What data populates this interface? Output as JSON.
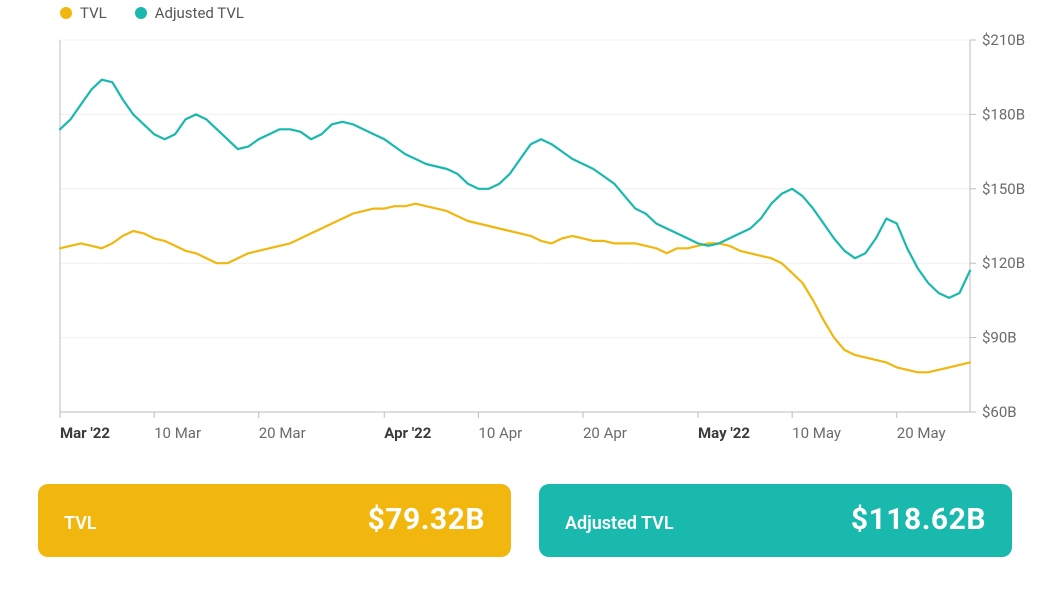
{
  "legend": {
    "items": [
      {
        "label": "TVL",
        "color": "#f1b70f"
      },
      {
        "label": "Adjusted TVL",
        "color": "#19b9ae"
      }
    ]
  },
  "chart": {
    "type": "line",
    "background_color": "#ffffff",
    "grid_color": "#f0f0f0",
    "axis_color": "#bdbdbd",
    "line_width": 2.2,
    "ylim": [
      60,
      210
    ],
    "ytick_step": 30,
    "y_tick_labels": [
      "$210B",
      "$180B",
      "$150B",
      "$120B",
      "$90B",
      "$60B"
    ],
    "y_tick_vals": [
      210,
      180,
      150,
      120,
      90,
      60
    ],
    "x_tick_labels": [
      {
        "label": "Mar '22",
        "bold": true,
        "idx": 0
      },
      {
        "label": "10 Mar",
        "bold": false,
        "idx": 9
      },
      {
        "label": "20 Mar",
        "bold": false,
        "idx": 19
      },
      {
        "label": "Apr '22",
        "bold": true,
        "idx": 31
      },
      {
        "label": "10 Apr",
        "bold": false,
        "idx": 40
      },
      {
        "label": "20 Apr",
        "bold": false,
        "idx": 50
      },
      {
        "label": "May '22",
        "bold": true,
        "idx": 61
      },
      {
        "label": "10 May",
        "bold": false,
        "idx": 70
      },
      {
        "label": "20 May",
        "bold": false,
        "idx": 80
      }
    ],
    "n_points": 88,
    "series": [
      {
        "name": "TVL",
        "color": "#f1b70f",
        "values": [
          126,
          127,
          128,
          127,
          126,
          128,
          131,
          133,
          132,
          130,
          129,
          127,
          125,
          124,
          122,
          120,
          120,
          122,
          124,
          125,
          126,
          127,
          128,
          130,
          132,
          134,
          136,
          138,
          140,
          141,
          142,
          142,
          143,
          143,
          144,
          143,
          142,
          141,
          139,
          137,
          136,
          135,
          134,
          133,
          132,
          131,
          129,
          128,
          130,
          131,
          130,
          129,
          129,
          128,
          128,
          128,
          127,
          126,
          124,
          126,
          126,
          127,
          128,
          128,
          127,
          125,
          124,
          123,
          122,
          120,
          116,
          112,
          105,
          97,
          90,
          85,
          83,
          82,
          81,
          80,
          78,
          77,
          76,
          76,
          77,
          78,
          79,
          80
        ]
      },
      {
        "name": "Adjusted TVL",
        "color": "#19b9ae",
        "values": [
          174,
          178,
          184,
          190,
          194,
          193,
          186,
          180,
          176,
          172,
          170,
          172,
          178,
          180,
          178,
          174,
          170,
          166,
          167,
          170,
          172,
          174,
          174,
          173,
          170,
          172,
          176,
          177,
          176,
          174,
          172,
          170,
          167,
          164,
          162,
          160,
          159,
          158,
          156,
          152,
          150,
          150,
          152,
          156,
          162,
          168,
          170,
          168,
          165,
          162,
          160,
          158,
          155,
          152,
          147,
          142,
          140,
          136,
          134,
          132,
          130,
          128,
          127,
          128,
          130,
          132,
          134,
          138,
          144,
          148,
          150,
          147,
          142,
          136,
          130,
          125,
          122,
          124,
          130,
          138,
          136,
          126,
          118,
          112,
          108,
          106,
          108,
          117
        ]
      }
    ]
  },
  "cards": [
    {
      "title": "TVL",
      "value": "$79.32B",
      "bg": "#f1b70f"
    },
    {
      "title": "Adjusted TVL",
      "value": "$118.62B",
      "bg": "#19b9ae"
    }
  ]
}
